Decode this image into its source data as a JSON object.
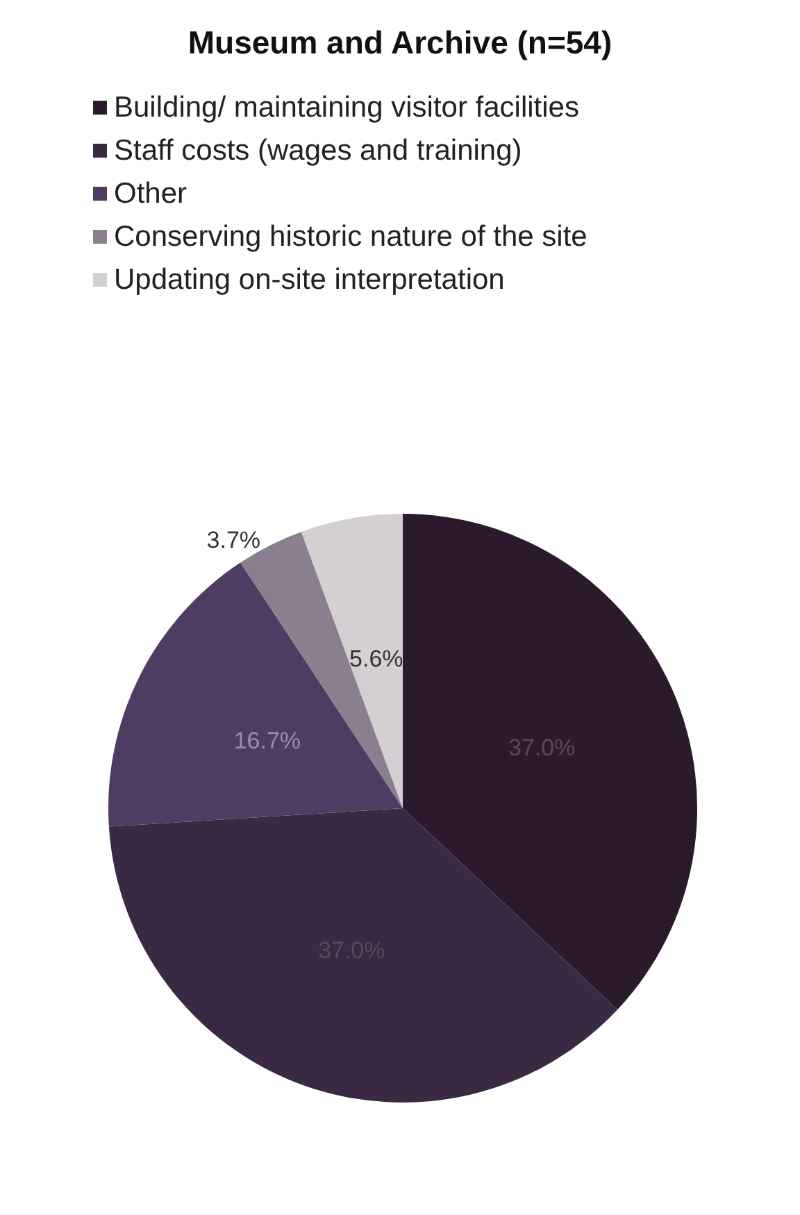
{
  "chart_data": {
    "type": "pie",
    "title": "Museum and Archive (n=54)",
    "categories": [
      "Building/ maintaining visitor facilities",
      "Staff costs (wages and training)",
      "Other",
      "Conserving historic nature of the site",
      "Updating on-site interpretation"
    ],
    "values": [
      37.0,
      37.0,
      16.7,
      3.7,
      5.6
    ],
    "colors": [
      "#2b1a2c",
      "#3a2943",
      "#4f3c62",
      "#8b7f8f",
      "#d3cfd3"
    ],
    "value_labels": [
      "37.0%",
      "37.0%",
      "16.7%",
      "3.7%",
      "5.6%"
    ],
    "legend": "top"
  }
}
